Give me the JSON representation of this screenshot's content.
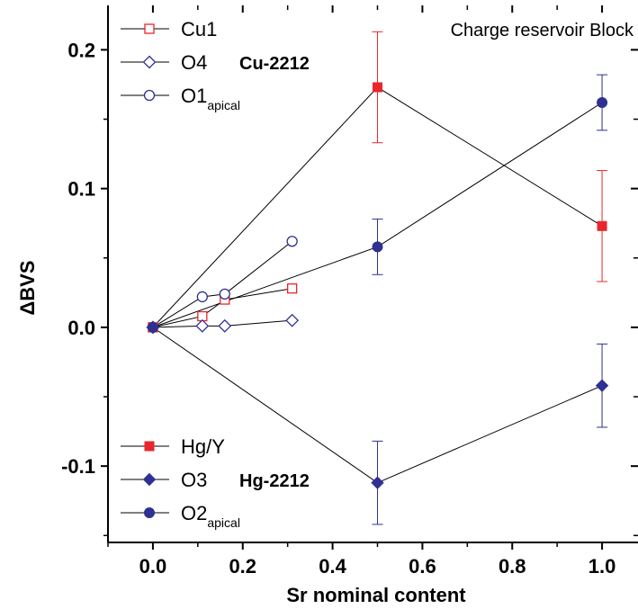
{
  "chart_data": {
    "type": "scatter",
    "title": "Charge reservoir Block",
    "xlabel": "Sr nominal content",
    "ylabel": "ΔBVS",
    "xlim": [
      -0.1,
      1.08
    ],
    "ylim": [
      -0.155,
      0.232
    ],
    "x_ticks": [
      0.0,
      0.2,
      0.4,
      0.6,
      0.8,
      1.0
    ],
    "x_tick_labels": [
      "0.0",
      "0.2",
      "0.4",
      "0.6",
      "0.8",
      "1.0"
    ],
    "y_ticks": [
      -0.1,
      0.0,
      0.1,
      0.2
    ],
    "y_tick_labels": [
      "-0.1",
      "0.0",
      "0.1",
      "0.2"
    ],
    "grid": false,
    "colors": {
      "red": "#e8262b",
      "blue": "#2e3192",
      "line": "#000000"
    },
    "series": [
      {
        "name": "Cu1",
        "group": "Cu-2212",
        "marker": "open-square",
        "color": "#e8262b",
        "points": [
          {
            "x": 0.0,
            "y": 0.0
          },
          {
            "x": 0.11,
            "y": 0.008
          },
          {
            "x": 0.16,
            "y": 0.02
          },
          {
            "x": 0.31,
            "y": 0.028
          }
        ]
      },
      {
        "name": "O4",
        "group": "Cu-2212",
        "marker": "open-diamond",
        "color": "#2e3192",
        "points": [
          {
            "x": 0.0,
            "y": 0.0
          },
          {
            "x": 0.11,
            "y": 0.001
          },
          {
            "x": 0.16,
            "y": 0.001
          },
          {
            "x": 0.31,
            "y": 0.005
          }
        ]
      },
      {
        "name": "O1",
        "name_sub": "apical",
        "group": "Cu-2212",
        "marker": "open-circle",
        "color": "#2e3192",
        "points": [
          {
            "x": 0.0,
            "y": 0.0
          },
          {
            "x": 0.11,
            "y": 0.022
          },
          {
            "x": 0.16,
            "y": 0.024
          },
          {
            "x": 0.31,
            "y": 0.062
          }
        ]
      },
      {
        "name": "Hg/Y",
        "group": "Hg-2212",
        "marker": "filled-square",
        "color": "#e8262b",
        "points": [
          {
            "x": 0.0,
            "y": 0.0,
            "err": 0
          },
          {
            "x": 0.5,
            "y": 0.173,
            "err": 0.04
          },
          {
            "x": 1.0,
            "y": 0.073,
            "err": 0.04
          }
        ]
      },
      {
        "name": "O3",
        "group": "Hg-2212",
        "marker": "filled-diamond",
        "color": "#2e3192",
        "points": [
          {
            "x": 0.0,
            "y": 0.0,
            "err": 0
          },
          {
            "x": 0.5,
            "y": -0.112,
            "err": 0.03
          },
          {
            "x": 1.0,
            "y": -0.042,
            "err": 0.03
          }
        ]
      },
      {
        "name": "O2",
        "name_sub": "apical",
        "group": "Hg-2212",
        "marker": "filled-circle",
        "color": "#2e3192",
        "points": [
          {
            "x": 0.0,
            "y": 0.0,
            "err": 0
          },
          {
            "x": 0.5,
            "y": 0.058,
            "err": 0.02
          },
          {
            "x": 1.0,
            "y": 0.162,
            "err": 0.02
          }
        ]
      }
    ],
    "legends": [
      {
        "placement": "top-left",
        "group_label": "Cu-2212",
        "series": [
          "Cu1",
          "O4",
          "O1"
        ]
      },
      {
        "placement": "bottom-left",
        "group_label": "Hg-2212",
        "series": [
          "Hg/Y",
          "O3",
          "O2"
        ]
      }
    ]
  }
}
